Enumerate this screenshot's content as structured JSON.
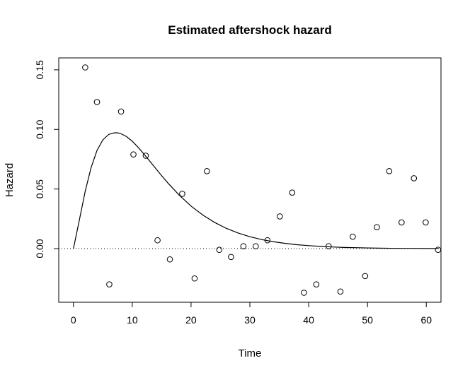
{
  "chart_data": {
    "type": "scatter",
    "title": "Estimated aftershock hazard",
    "xlabel": "Time",
    "ylabel": "Hazard",
    "xlim": [
      -2.5,
      62.5
    ],
    "ylim": [
      -0.045,
      0.16
    ],
    "xticks": [
      0,
      10,
      20,
      30,
      40,
      50,
      60
    ],
    "xtick_labels": [
      "0",
      "10",
      "20",
      "30",
      "40",
      "50",
      "60"
    ],
    "yticks": [
      0,
      0.05,
      0.1,
      0.15
    ],
    "ytick_labels": [
      "0.00",
      "0.05",
      "0.10",
      "0.15"
    ],
    "grid": false,
    "reference_line": {
      "y": 0,
      "style": "dotted"
    },
    "points": {
      "x": [
        2.0,
        4.0,
        6.1,
        8.1,
        10.2,
        12.3,
        14.3,
        16.4,
        18.5,
        20.6,
        22.7,
        24.8,
        26.8,
        28.9,
        31.0,
        33.0,
        35.1,
        37.2,
        39.2,
        41.3,
        43.4,
        45.4,
        47.5,
        49.6,
        51.6,
        53.7,
        55.8,
        57.9,
        59.9,
        62.0
      ],
      "y": [
        0.152,
        0.123,
        -0.03,
        0.115,
        0.079,
        0.078,
        0.007,
        -0.009,
        0.046,
        -0.025,
        0.065,
        -0.001,
        -0.007,
        0.002,
        0.002,
        0.007,
        0.027,
        0.047,
        -0.037,
        -0.03,
        0.002,
        -0.036,
        0.01,
        -0.023,
        0.018,
        0.065,
        0.022,
        0.059,
        0.022,
        -0.001
      ]
    },
    "curve": {
      "type": "gamma_density_fit",
      "x": [
        0,
        1,
        2,
        3,
        4,
        5,
        6,
        7,
        7.5,
        8,
        9,
        10,
        11,
        12,
        13,
        14,
        15,
        16,
        18,
        20,
        22,
        24,
        26,
        28,
        30,
        32,
        34,
        36,
        38,
        40,
        42,
        44,
        46,
        48,
        50,
        52,
        54,
        56,
        58,
        60,
        62
      ],
      "y": [
        0,
        0.0239,
        0.0481,
        0.068,
        0.0823,
        0.0912,
        0.0958,
        0.0972,
        0.0971,
        0.0966,
        0.0941,
        0.0901,
        0.085,
        0.0793,
        0.0733,
        0.0672,
        0.0612,
        0.0554,
        0.0448,
        0.0357,
        0.0282,
        0.022,
        0.017,
        0.0131,
        0.01,
        0.0076,
        0.0058,
        0.0044,
        0.0033,
        0.0025,
        0.0019,
        0.0014,
        0.001,
        0.0008,
        0.0006,
        0.0004,
        0.0003,
        0.0002,
        0.0002,
        0.0001,
        0.0001
      ]
    }
  }
}
